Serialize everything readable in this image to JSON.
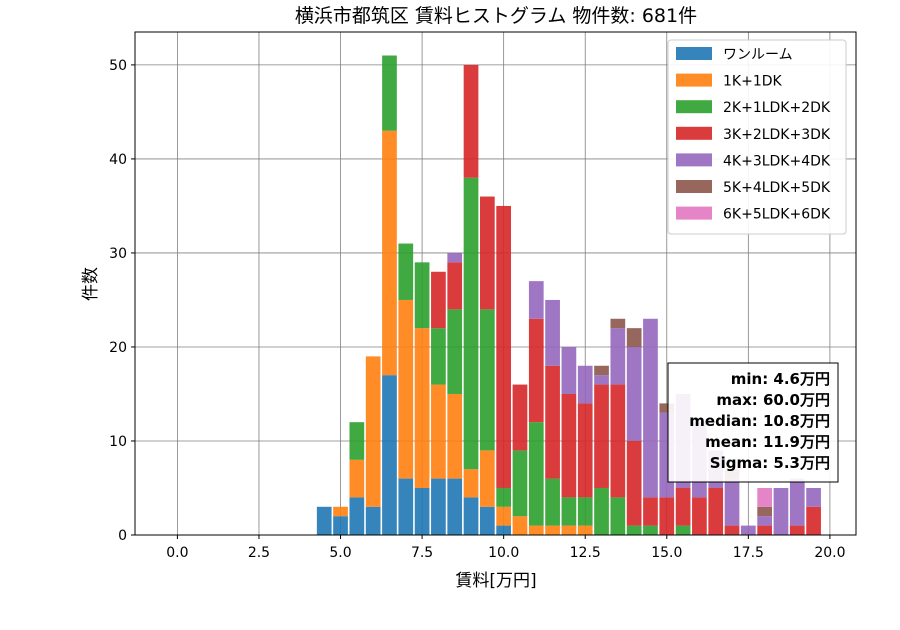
{
  "chart_data": {
    "type": "bar",
    "stacked": true,
    "title": "横浜市都筑区 賃料ヒストグラム 物件数: 681件",
    "xlabel": "賃料[万円]",
    "ylabel": "件数",
    "xlim": [
      -1.3,
      20.8
    ],
    "ylim": [
      0,
      53.5
    ],
    "xticks": [
      0.0,
      2.5,
      5.0,
      7.5,
      10.0,
      12.5,
      15.0,
      17.5,
      20.0
    ],
    "yticks": [
      0,
      10,
      20,
      30,
      40,
      50
    ],
    "grid": true,
    "bin_width": 0.5,
    "x": [
      4.5,
      5.0,
      5.5,
      6.0,
      6.5,
      7.0,
      7.5,
      8.0,
      8.5,
      9.0,
      9.5,
      10.0,
      10.5,
      11.0,
      11.5,
      12.0,
      12.5,
      13.0,
      13.5,
      14.0,
      14.5,
      15.0,
      15.5,
      16.0,
      16.5,
      17.0,
      17.5,
      18.0,
      18.5,
      19.0,
      19.5
    ],
    "series": [
      {
        "name": "ワンルーム",
        "color": "#1f77b4",
        "values": [
          3,
          2,
          4,
          3,
          17,
          6,
          5,
          6,
          6,
          4,
          3,
          1,
          0,
          0,
          0,
          0,
          0,
          0,
          0,
          0,
          0,
          0,
          0,
          0,
          0,
          0,
          0,
          0,
          0,
          0,
          0
        ]
      },
      {
        "name": "1K+1DK",
        "color": "#ff7f0e",
        "values": [
          0,
          1,
          4,
          16,
          26,
          19,
          17,
          10,
          9,
          3,
          6,
          2,
          2,
          1,
          1,
          1,
          1,
          0,
          0,
          0,
          0,
          0,
          0,
          0,
          0,
          0,
          0,
          0,
          0,
          0,
          0
        ]
      },
      {
        "name": "2K+1LDK+2DK",
        "color": "#2ca02c",
        "values": [
          0,
          0,
          4,
          0,
          8,
          6,
          7,
          6,
          9,
          31,
          15,
          2,
          7,
          11,
          5,
          3,
          3,
          5,
          4,
          1,
          1,
          0,
          1,
          0,
          0,
          0,
          0,
          0,
          0,
          0,
          0
        ]
      },
      {
        "name": "3K+2LDK+3DK",
        "color": "#d62728",
        "values": [
          0,
          0,
          0,
          0,
          0,
          0,
          0,
          6,
          5,
          12,
          12,
          30,
          7,
          11,
          12,
          11,
          10,
          11,
          12,
          9,
          3,
          4,
          4,
          4,
          5,
          1,
          0,
          1,
          0,
          1,
          3
        ]
      },
      {
        "name": "4K+3LDK+4DK",
        "color": "#9467bd",
        "values": [
          0,
          0,
          0,
          0,
          0,
          0,
          0,
          0,
          1,
          0,
          0,
          0,
          0,
          4,
          7,
          5,
          4,
          1,
          6,
          10,
          19,
          9,
          10,
          8,
          4,
          5,
          1,
          1,
          5,
          5,
          2
        ]
      },
      {
        "name": "5K+4LDK+5DK",
        "color": "#8c564b",
        "values": [
          0,
          0,
          0,
          0,
          0,
          0,
          0,
          0,
          0,
          0,
          0,
          0,
          0,
          0,
          0,
          0,
          0,
          1,
          1,
          2,
          0,
          1,
          0,
          0,
          0,
          1,
          0,
          1,
          0,
          0,
          0
        ]
      },
      {
        "name": "6K+5LDK+6DK",
        "color": "#e377c2",
        "values": [
          0,
          0,
          0,
          0,
          0,
          0,
          0,
          0,
          0,
          0,
          0,
          0,
          0,
          0,
          0,
          0,
          0,
          0,
          0,
          0,
          0,
          0,
          0,
          0,
          0,
          0,
          0,
          2,
          0,
          0,
          0
        ]
      }
    ],
    "legend_position": "top-right",
    "stats": {
      "min": "min: 4.6万円",
      "max": "max: 60.0万円",
      "median": "median: 10.8万円",
      "mean": "mean: 11.9万円",
      "sigma": "Sigma: 5.3万円"
    }
  }
}
